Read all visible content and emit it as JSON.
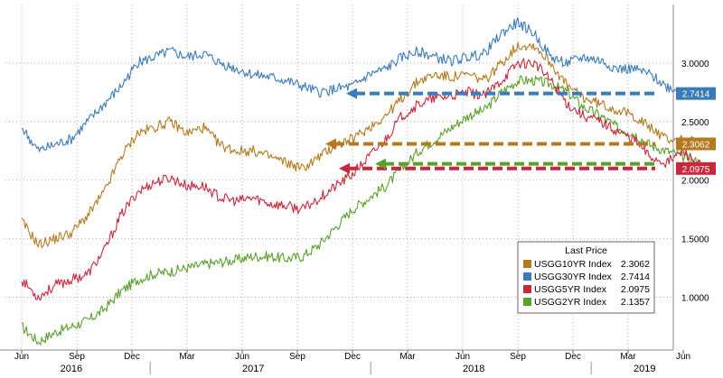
{
  "chart_data": {
    "type": "line",
    "x_axis": {
      "months": [
        "Jun",
        "Sep",
        "Dec",
        "Mar",
        "Jun",
        "Sep",
        "Dec",
        "Mar",
        "Jun",
        "Sep",
        "Dec",
        "Mar",
        "Jun"
      ],
      "years": [
        "2016",
        "2017",
        "2018",
        "2019"
      ]
    },
    "y_axis": {
      "ticks": [
        "3.0000",
        "2.5000",
        "2.0000",
        "1.5000",
        "1.0000"
      ],
      "ylim": [
        0.55,
        3.5
      ]
    },
    "grid": true,
    "legend": {
      "position": "bottom-right",
      "title": "Last Price",
      "entries": [
        {
          "name": "USGG10YR Index",
          "value": "2.3062",
          "color": "#b37a1f"
        },
        {
          "name": "USGG30YR Index",
          "value": "2.7414",
          "color": "#3a7bb8"
        },
        {
          "name": "USGG5YR Index",
          "value": "2.0975",
          "color": "#c8283c"
        },
        {
          "name": "USGG2YR Index",
          "value": "2.1357",
          "color": "#5aa02c"
        }
      ]
    },
    "last_value_tags": [
      {
        "value": "2.7414",
        "color": "#3a7bb8"
      },
      {
        "value": "2.3062",
        "color": "#b37a1f"
      },
      {
        "value": "2.0975",
        "color": "#c8283c"
      }
    ],
    "series": [
      {
        "key": "usgg30yr",
        "color": "#3a7bb8",
        "points": [
          [
            0,
            2.45
          ],
          [
            0.3,
            2.25
          ],
          [
            0.6,
            2.3
          ],
          [
            0.9,
            2.35
          ],
          [
            1.2,
            2.5
          ],
          [
            1.5,
            2.65
          ],
          [
            1.8,
            2.8
          ],
          [
            2.1,
            3.0
          ],
          [
            2.4,
            3.05
          ],
          [
            2.7,
            3.1
          ],
          [
            3.0,
            3.05
          ],
          [
            3.3,
            3.08
          ],
          [
            3.6,
            3.0
          ],
          [
            3.9,
            2.95
          ],
          [
            4.2,
            2.9
          ],
          [
            4.5,
            2.88
          ],
          [
            4.8,
            2.85
          ],
          [
            5.1,
            2.8
          ],
          [
            5.4,
            2.75
          ],
          [
            5.7,
            2.78
          ],
          [
            6.0,
            2.8
          ],
          [
            6.3,
            2.9
          ],
          [
            6.6,
            2.95
          ],
          [
            6.9,
            3.05
          ],
          [
            7.2,
            3.1
          ],
          [
            7.5,
            3.05
          ],
          [
            7.8,
            3.02
          ],
          [
            8.1,
            3.05
          ],
          [
            8.4,
            3.08
          ],
          [
            8.7,
            3.25
          ],
          [
            9.0,
            3.35
          ],
          [
            9.3,
            3.25
          ],
          [
            9.6,
            3.05
          ],
          [
            9.9,
            3.0
          ],
          [
            10.2,
            3.05
          ],
          [
            10.5,
            3.02
          ],
          [
            10.8,
            2.95
          ],
          [
            11.1,
            2.95
          ],
          [
            11.4,
            2.9
          ],
          [
            11.7,
            2.8
          ],
          [
            12.0,
            2.75
          ],
          [
            12.35,
            2.74
          ]
        ]
      },
      {
        "key": "usgg10yr",
        "color": "#b37a1f",
        "points": [
          [
            0,
            1.65
          ],
          [
            0.3,
            1.45
          ],
          [
            0.6,
            1.5
          ],
          [
            0.9,
            1.55
          ],
          [
            1.2,
            1.7
          ],
          [
            1.5,
            1.9
          ],
          [
            1.8,
            2.2
          ],
          [
            2.1,
            2.4
          ],
          [
            2.4,
            2.45
          ],
          [
            2.7,
            2.5
          ],
          [
            3.0,
            2.4
          ],
          [
            3.3,
            2.45
          ],
          [
            3.6,
            2.3
          ],
          [
            3.9,
            2.25
          ],
          [
            4.2,
            2.25
          ],
          [
            4.5,
            2.2
          ],
          [
            4.8,
            2.15
          ],
          [
            5.1,
            2.1
          ],
          [
            5.4,
            2.2
          ],
          [
            5.7,
            2.3
          ],
          [
            6.0,
            2.35
          ],
          [
            6.3,
            2.45
          ],
          [
            6.6,
            2.55
          ],
          [
            6.9,
            2.7
          ],
          [
            7.2,
            2.85
          ],
          [
            7.5,
            2.9
          ],
          [
            7.8,
            2.88
          ],
          [
            8.1,
            2.9
          ],
          [
            8.4,
            2.85
          ],
          [
            8.7,
            3.0
          ],
          [
            9.0,
            3.15
          ],
          [
            9.3,
            3.15
          ],
          [
            9.6,
            3.0
          ],
          [
            9.9,
            2.8
          ],
          [
            10.2,
            2.7
          ],
          [
            10.5,
            2.65
          ],
          [
            10.8,
            2.6
          ],
          [
            11.1,
            2.55
          ],
          [
            11.4,
            2.45
          ],
          [
            11.7,
            2.35
          ],
          [
            12.0,
            2.35
          ],
          [
            12.35,
            2.31
          ]
        ]
      },
      {
        "key": "usgg5yr",
        "color": "#c8283c",
        "points": [
          [
            0,
            1.15
          ],
          [
            0.3,
            1.0
          ],
          [
            0.6,
            1.1
          ],
          [
            0.9,
            1.15
          ],
          [
            1.2,
            1.2
          ],
          [
            1.5,
            1.4
          ],
          [
            1.8,
            1.7
          ],
          [
            2.1,
            1.9
          ],
          [
            2.4,
            1.98
          ],
          [
            2.7,
            2.02
          ],
          [
            3.0,
            1.95
          ],
          [
            3.3,
            1.95
          ],
          [
            3.6,
            1.85
          ],
          [
            3.9,
            1.82
          ],
          [
            4.2,
            1.85
          ],
          [
            4.5,
            1.8
          ],
          [
            4.8,
            1.78
          ],
          [
            5.1,
            1.75
          ],
          [
            5.4,
            1.85
          ],
          [
            5.7,
            1.95
          ],
          [
            6.0,
            2.05
          ],
          [
            6.3,
            2.2
          ],
          [
            6.6,
            2.35
          ],
          [
            6.9,
            2.55
          ],
          [
            7.2,
            2.65
          ],
          [
            7.5,
            2.7
          ],
          [
            7.8,
            2.72
          ],
          [
            8.1,
            2.75
          ],
          [
            8.4,
            2.72
          ],
          [
            8.7,
            2.85
          ],
          [
            9.0,
            3.0
          ],
          [
            9.3,
            3.0
          ],
          [
            9.6,
            2.85
          ],
          [
            9.9,
            2.65
          ],
          [
            10.2,
            2.55
          ],
          [
            10.5,
            2.5
          ],
          [
            10.8,
            2.42
          ],
          [
            11.1,
            2.35
          ],
          [
            11.4,
            2.2
          ],
          [
            11.7,
            2.15
          ],
          [
            12.0,
            2.25
          ],
          [
            12.35,
            2.1
          ]
        ]
      },
      {
        "key": "usgg2yr",
        "color": "#5aa02c",
        "points": [
          [
            0,
            0.75
          ],
          [
            0.3,
            0.62
          ],
          [
            0.6,
            0.7
          ],
          [
            0.9,
            0.75
          ],
          [
            1.2,
            0.8
          ],
          [
            1.5,
            0.9
          ],
          [
            1.8,
            1.05
          ],
          [
            2.1,
            1.15
          ],
          [
            2.4,
            1.2
          ],
          [
            2.7,
            1.22
          ],
          [
            3.0,
            1.25
          ],
          [
            3.3,
            1.28
          ],
          [
            3.6,
            1.3
          ],
          [
            3.9,
            1.32
          ],
          [
            4.2,
            1.35
          ],
          [
            4.5,
            1.35
          ],
          [
            4.8,
            1.33
          ],
          [
            5.1,
            1.35
          ],
          [
            5.4,
            1.45
          ],
          [
            5.7,
            1.6
          ],
          [
            6.0,
            1.75
          ],
          [
            6.3,
            1.85
          ],
          [
            6.6,
            1.95
          ],
          [
            6.9,
            2.1
          ],
          [
            7.2,
            2.25
          ],
          [
            7.5,
            2.35
          ],
          [
            7.8,
            2.45
          ],
          [
            8.1,
            2.55
          ],
          [
            8.4,
            2.6
          ],
          [
            8.7,
            2.75
          ],
          [
            9.0,
            2.85
          ],
          [
            9.3,
            2.85
          ],
          [
            9.6,
            2.82
          ],
          [
            9.9,
            2.75
          ],
          [
            10.2,
            2.62
          ],
          [
            10.5,
            2.55
          ],
          [
            10.8,
            2.45
          ],
          [
            11.1,
            2.4
          ],
          [
            11.4,
            2.3
          ],
          [
            11.7,
            2.25
          ],
          [
            12.0,
            2.2
          ],
          [
            12.35,
            2.14
          ]
        ]
      }
    ]
  }
}
